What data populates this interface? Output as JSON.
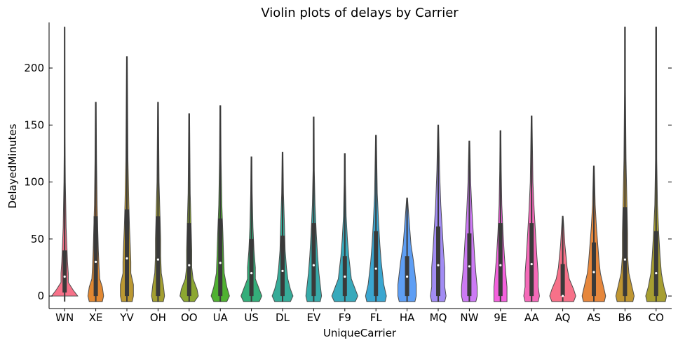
{
  "chart_data": {
    "type": "violin",
    "title": "Violin plots of delays by Carrier",
    "xlabel": "UniqueCarrier",
    "ylabel": "DelayedMinutes",
    "ylim": [
      -11,
      240
    ],
    "yticks": [
      0,
      50,
      100,
      150,
      200
    ],
    "grid": false,
    "categories": [
      "WN",
      "XE",
      "YV",
      "OH",
      "OO",
      "UA",
      "US",
      "DL",
      "EV",
      "F9",
      "FL",
      "HA",
      "MQ",
      "NW",
      "9E",
      "AA",
      "AQ",
      "AS",
      "B6",
      "CO"
    ],
    "colors": [
      "#f77189",
      "#e18832",
      "#bb9832",
      "#a39f31",
      "#8ca731",
      "#50b131",
      "#34ae7a",
      "#36ab98",
      "#37aaa9",
      "#38a9bb",
      "#3aa6d0",
      "#5e9ef4",
      "#a28cf4",
      "#cc7af4",
      "#f461dd",
      "#f56ab9",
      "#f77189",
      "#e6873c",
      "#bf9632",
      "#a69e31"
    ],
    "series": [
      {
        "category": "WN",
        "max": 236,
        "q1": 3,
        "median": 17,
        "q3": 40,
        "profile": [
          [
            0,
            18
          ],
          [
            5,
            12
          ],
          [
            12,
            5
          ],
          [
            20,
            5
          ],
          [
            30,
            4
          ],
          [
            45,
            3
          ],
          [
            60,
            2
          ],
          [
            80,
            1.5
          ],
          [
            100,
            1
          ],
          [
            140,
            0.5
          ],
          [
            236,
            0.3
          ]
        ]
      },
      {
        "category": "XE",
        "max": 170,
        "q1": 0,
        "median": 30,
        "q3": 70,
        "profile": [
          [
            -5,
            5
          ],
          [
            0,
            6
          ],
          [
            8,
            5
          ],
          [
            15,
            3
          ],
          [
            25,
            2.5
          ],
          [
            40,
            2
          ],
          [
            60,
            1.5
          ],
          [
            80,
            1
          ],
          [
            120,
            0.6
          ],
          [
            170,
            0.3
          ]
        ]
      },
      {
        "category": "YV",
        "max": 210,
        "q1": 0,
        "median": 33,
        "q3": 76,
        "profile": [
          [
            -5,
            4
          ],
          [
            0,
            5
          ],
          [
            10,
            5
          ],
          [
            20,
            3
          ],
          [
            30,
            3
          ],
          [
            45,
            2.5
          ],
          [
            60,
            2
          ],
          [
            80,
            1.5
          ],
          [
            120,
            0.8
          ],
          [
            210,
            0.3
          ]
        ]
      },
      {
        "category": "OH",
        "max": 170,
        "q1": 0,
        "median": 32,
        "q3": 70,
        "profile": [
          [
            -5,
            4
          ],
          [
            0,
            5
          ],
          [
            10,
            4
          ],
          [
            20,
            2.5
          ],
          [
            35,
            2
          ],
          [
            50,
            2
          ],
          [
            70,
            1.5
          ],
          [
            100,
            0.8
          ],
          [
            170,
            0.3
          ]
        ]
      },
      {
        "category": "OO",
        "max": 160,
        "q1": 0,
        "median": 27,
        "q3": 64,
        "profile": [
          [
            -5,
            4
          ],
          [
            0,
            7
          ],
          [
            6,
            6
          ],
          [
            15,
            3
          ],
          [
            25,
            2
          ],
          [
            40,
            2
          ],
          [
            60,
            1.5
          ],
          [
            90,
            0.8
          ],
          [
            160,
            0.3
          ]
        ]
      },
      {
        "category": "UA",
        "max": 167,
        "q1": 0,
        "median": 29,
        "q3": 68,
        "profile": [
          [
            -5,
            5
          ],
          [
            0,
            7
          ],
          [
            8,
            5
          ],
          [
            20,
            3
          ],
          [
            35,
            2.5
          ],
          [
            55,
            2
          ],
          [
            80,
            1.2
          ],
          [
            120,
            0.6
          ],
          [
            167,
            0.3
          ]
        ]
      },
      {
        "category": "US",
        "max": 122,
        "q1": 0,
        "median": 20,
        "q3": 50,
        "profile": [
          [
            -5,
            6
          ],
          [
            0,
            8
          ],
          [
            6,
            6
          ],
          [
            15,
            3
          ],
          [
            25,
            3
          ],
          [
            40,
            2
          ],
          [
            60,
            1.2
          ],
          [
            90,
            0.6
          ],
          [
            122,
            0.3
          ]
        ]
      },
      {
        "category": "DL",
        "max": 126,
        "q1": 0,
        "median": 22,
        "q3": 53,
        "profile": [
          [
            -5,
            6
          ],
          [
            0,
            8
          ],
          [
            6,
            6
          ],
          [
            15,
            4
          ],
          [
            25,
            3
          ],
          [
            40,
            2
          ],
          [
            60,
            1.5
          ],
          [
            90,
            0.7
          ],
          [
            126,
            0.3
          ]
        ]
      },
      {
        "category": "EV",
        "max": 157,
        "q1": 0,
        "median": 27,
        "q3": 64,
        "profile": [
          [
            -5,
            5
          ],
          [
            0,
            6
          ],
          [
            10,
            5
          ],
          [
            20,
            4
          ],
          [
            35,
            3
          ],
          [
            55,
            2
          ],
          [
            80,
            1
          ],
          [
            110,
            0.5
          ],
          [
            157,
            0.3
          ]
        ]
      },
      {
        "category": "F9",
        "max": 125,
        "q1": 0,
        "median": 17,
        "q3": 35,
        "profile": [
          [
            -5,
            8
          ],
          [
            0,
            10
          ],
          [
            6,
            8
          ],
          [
            15,
            5
          ],
          [
            25,
            4
          ],
          [
            35,
            3
          ],
          [
            50,
            2
          ],
          [
            70,
            1
          ],
          [
            100,
            0.5
          ],
          [
            125,
            0.3
          ]
        ]
      },
      {
        "category": "FL",
        "max": 141,
        "q1": 0,
        "median": 24,
        "q3": 57,
        "profile": [
          [
            -5,
            7
          ],
          [
            0,
            8
          ],
          [
            10,
            6
          ],
          [
            20,
            5
          ],
          [
            30,
            4
          ],
          [
            45,
            3
          ],
          [
            65,
            2
          ],
          [
            90,
            1
          ],
          [
            141,
            0.3
          ]
        ]
      },
      {
        "category": "HA",
        "max": 86,
        "q1": 0,
        "median": 17,
        "q3": 35,
        "profile": [
          [
            -5,
            6
          ],
          [
            0,
            7
          ],
          [
            10,
            7
          ],
          [
            20,
            6
          ],
          [
            30,
            5
          ],
          [
            45,
            3
          ],
          [
            60,
            2
          ],
          [
            75,
            1
          ],
          [
            86,
            0.3
          ]
        ]
      },
      {
        "category": "MQ",
        "max": 150,
        "q1": 0,
        "median": 27,
        "q3": 61,
        "profile": [
          [
            -5,
            5
          ],
          [
            0,
            6
          ],
          [
            8,
            5
          ],
          [
            15,
            5
          ],
          [
            25,
            5
          ],
          [
            40,
            4
          ],
          [
            60,
            3
          ],
          [
            80,
            2
          ],
          [
            110,
            1
          ],
          [
            150,
            0.3
          ]
        ]
      },
      {
        "category": "NW",
        "max": 136,
        "q1": 0,
        "median": 26,
        "q3": 55,
        "profile": [
          [
            -5,
            5
          ],
          [
            0,
            6
          ],
          [
            8,
            6
          ],
          [
            20,
            5
          ],
          [
            35,
            4
          ],
          [
            55,
            3
          ],
          [
            75,
            2
          ],
          [
            100,
            1
          ],
          [
            136,
            0.3
          ]
        ]
      },
      {
        "category": "9E",
        "max": 145,
        "q1": 0,
        "median": 27,
        "q3": 64,
        "profile": [
          [
            -5,
            5
          ],
          [
            0,
            5
          ],
          [
            8,
            5
          ],
          [
            20,
            4
          ],
          [
            35,
            3
          ],
          [
            55,
            2
          ],
          [
            80,
            1
          ],
          [
            110,
            0.6
          ],
          [
            145,
            0.3
          ]
        ]
      },
      {
        "category": "AA",
        "max": 158,
        "q1": 0,
        "median": 28,
        "q3": 64,
        "profile": [
          [
            -5,
            5
          ],
          [
            0,
            6
          ],
          [
            8,
            5
          ],
          [
            20,
            5
          ],
          [
            35,
            4
          ],
          [
            55,
            3
          ],
          [
            75,
            2
          ],
          [
            100,
            1
          ],
          [
            158,
            0.3
          ]
        ]
      },
      {
        "category": "AQ",
        "max": 70,
        "q1": 0,
        "median": 0,
        "q3": 28,
        "profile": [
          [
            -5,
            10
          ],
          [
            0,
            12
          ],
          [
            6,
            10
          ],
          [
            15,
            6
          ],
          [
            25,
            4
          ],
          [
            35,
            3
          ],
          [
            45,
            2
          ],
          [
            60,
            1
          ],
          [
            70,
            0.3
          ]
        ]
      },
      {
        "category": "AS",
        "max": 114,
        "q1": 0,
        "median": 21,
        "q3": 47,
        "profile": [
          [
            -5,
            8
          ],
          [
            0,
            9
          ],
          [
            10,
            7
          ],
          [
            20,
            5
          ],
          [
            30,
            4
          ],
          [
            45,
            3
          ],
          [
            60,
            2
          ],
          [
            80,
            1
          ],
          [
            114,
            0.3
          ]
        ]
      },
      {
        "category": "B6",
        "max": 236,
        "q1": 0,
        "median": 32,
        "q3": 78,
        "profile": [
          [
            -5,
            6
          ],
          [
            0,
            7
          ],
          [
            10,
            5
          ],
          [
            20,
            3
          ],
          [
            35,
            2
          ],
          [
            55,
            2
          ],
          [
            80,
            1.5
          ],
          [
            120,
            0.8
          ],
          [
            180,
            0.4
          ],
          [
            236,
            0.3
          ]
        ]
      },
      {
        "category": "CO",
        "max": 236,
        "q1": 0,
        "median": 20,
        "q3": 57,
        "profile": [
          [
            -5,
            7
          ],
          [
            0,
            8
          ],
          [
            8,
            6
          ],
          [
            20,
            4
          ],
          [
            35,
            3
          ],
          [
            55,
            2
          ],
          [
            80,
            1
          ],
          [
            120,
            0.5
          ],
          [
            236,
            0.3
          ]
        ]
      }
    ]
  }
}
